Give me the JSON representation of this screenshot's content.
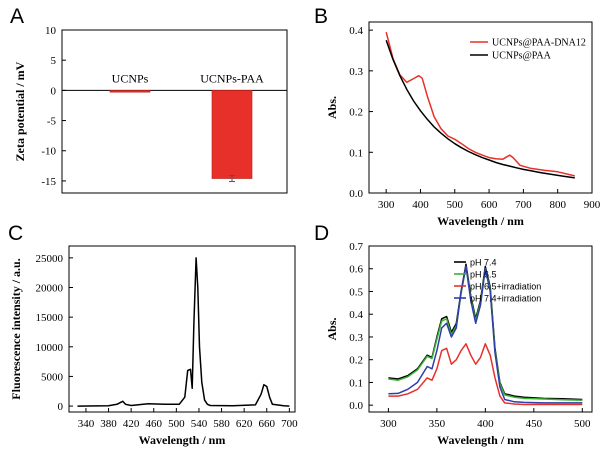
{
  "chart_data": [
    {
      "panel": "A",
      "type": "bar",
      "ylabel": "Zeta potential / mV",
      "ylim": [
        -17,
        10
      ],
      "yticks": [
        10,
        5,
        0,
        -5,
        -10,
        -15
      ],
      "categories": [
        "UCNPs",
        "UCNPs-PAA"
      ],
      "values": [
        -0.3,
        -14.6
      ],
      "errors": [
        0,
        0.5
      ],
      "color": "#e8302a"
    },
    {
      "panel": "B",
      "type": "line",
      "xlabel": "Wavelength / nm",
      "ylabel": "Abs.",
      "xlim": [
        250,
        900
      ],
      "ylim": [
        0,
        0.42
      ],
      "xticks": [
        300,
        400,
        500,
        600,
        700,
        800,
        900
      ],
      "yticks": [
        0.0,
        0.1,
        0.2,
        0.3,
        0.4
      ],
      "legend": "top-right",
      "series": [
        {
          "name": "UCNPs@PAA-DNA12",
          "color": "#e8302a",
          "x": [
            300,
            320,
            340,
            360,
            380,
            395,
            405,
            420,
            440,
            460,
            480,
            500,
            520,
            540,
            560,
            580,
            600,
            620,
            640,
            650,
            660,
            670,
            690,
            720,
            760,
            800,
            850
          ],
          "y": [
            0.395,
            0.33,
            0.29,
            0.272,
            0.281,
            0.288,
            0.282,
            0.238,
            0.187,
            0.158,
            0.14,
            0.132,
            0.121,
            0.109,
            0.1,
            0.093,
            0.087,
            0.084,
            0.083,
            0.088,
            0.093,
            0.087,
            0.068,
            0.061,
            0.056,
            0.052,
            0.042
          ]
        },
        {
          "name": "UCNPs@PAA",
          "color": "#000000",
          "x": [
            300,
            320,
            340,
            360,
            380,
            400,
            420,
            440,
            460,
            480,
            500,
            520,
            540,
            560,
            580,
            600,
            620,
            640,
            660,
            680,
            700,
            720,
            750,
            780,
            810,
            850
          ],
          "y": [
            0.375,
            0.328,
            0.288,
            0.255,
            0.226,
            0.202,
            0.181,
            0.162,
            0.147,
            0.133,
            0.121,
            0.111,
            0.102,
            0.094,
            0.087,
            0.081,
            0.075,
            0.07,
            0.066,
            0.062,
            0.058,
            0.055,
            0.05,
            0.046,
            0.042,
            0.037
          ]
        }
      ]
    },
    {
      "panel": "C",
      "type": "line",
      "xlabel": "Wavelength / nm",
      "ylabel": "Fluorescence intensity / a.u.",
      "xlim": [
        310,
        710
      ],
      "ylim": [
        -1000,
        27000
      ],
      "xticks": [
        340,
        380,
        420,
        460,
        500,
        540,
        580,
        620,
        660,
        700
      ],
      "yticks": [
        0,
        5000,
        10000,
        15000,
        20000,
        25000
      ],
      "series": [
        {
          "name": "",
          "color": "#000000",
          "x": [
            325,
            380,
            395,
            405,
            410,
            420,
            450,
            480,
            505,
            515,
            520,
            525,
            528,
            531,
            535,
            538,
            541,
            545,
            550,
            555,
            560,
            600,
            640,
            650,
            655,
            660,
            665,
            670,
            690,
            700
          ],
          "y": [
            0,
            50,
            300,
            800,
            300,
            100,
            400,
            300,
            300,
            1500,
            6000,
            6200,
            3000,
            14000,
            25000,
            20000,
            10000,
            4000,
            1000,
            300,
            100,
            50,
            200,
            2000,
            3600,
            3300,
            1500,
            300,
            50,
            0
          ]
        }
      ]
    },
    {
      "panel": "D",
      "type": "line",
      "xlabel": "Wavelength / nm",
      "ylabel": "Abs.",
      "xlim": [
        280,
        510
      ],
      "ylim": [
        -0.03,
        0.7
      ],
      "xticks": [
        300,
        350,
        400,
        450,
        500
      ],
      "yticks": [
        0.0,
        0.1,
        0.2,
        0.3,
        0.4,
        0.5,
        0.6,
        0.7
      ],
      "legend": "top-right",
      "series": [
        {
          "name": "pH 7.4",
          "color": "#000000",
          "x": [
            300,
            310,
            320,
            330,
            340,
            345,
            350,
            355,
            360,
            365,
            370,
            375,
            380,
            385,
            390,
            395,
            400,
            405,
            410,
            415,
            420,
            430,
            440,
            460,
            480,
            500
          ],
          "y": [
            0.12,
            0.115,
            0.13,
            0.16,
            0.22,
            0.21,
            0.3,
            0.38,
            0.39,
            0.32,
            0.36,
            0.5,
            0.62,
            0.48,
            0.38,
            0.46,
            0.61,
            0.52,
            0.25,
            0.1,
            0.05,
            0.04,
            0.035,
            0.03,
            0.028,
            0.025
          ]
        },
        {
          "name": "pH 6.5",
          "color": "#3cb034",
          "x": [
            300,
            310,
            320,
            330,
            340,
            345,
            350,
            355,
            360,
            365,
            370,
            375,
            380,
            385,
            390,
            395,
            400,
            405,
            410,
            415,
            420,
            430,
            440,
            460,
            480,
            500
          ],
          "y": [
            0.115,
            0.11,
            0.125,
            0.155,
            0.215,
            0.205,
            0.29,
            0.37,
            0.38,
            0.31,
            0.35,
            0.49,
            0.61,
            0.47,
            0.37,
            0.45,
            0.6,
            0.51,
            0.24,
            0.095,
            0.045,
            0.035,
            0.03,
            0.027,
            0.024,
            0.022
          ]
        },
        {
          "name": "pH 6.5+irradiation",
          "color": "#e8302a",
          "x": [
            300,
            310,
            320,
            330,
            340,
            345,
            350,
            355,
            360,
            365,
            370,
            375,
            380,
            385,
            390,
            395,
            400,
            405,
            410,
            415,
            420,
            430,
            440,
            460,
            480,
            500
          ],
          "y": [
            0.04,
            0.04,
            0.05,
            0.07,
            0.12,
            0.11,
            0.16,
            0.24,
            0.25,
            0.18,
            0.2,
            0.24,
            0.27,
            0.22,
            0.18,
            0.21,
            0.27,
            0.22,
            0.12,
            0.04,
            0.01,
            0.005,
            0.003,
            0.003,
            0.003,
            0.003
          ]
        },
        {
          "name": "pH 7.4+irradiation",
          "color": "#2f3ea8",
          "x": [
            300,
            310,
            320,
            330,
            340,
            345,
            350,
            355,
            360,
            365,
            370,
            375,
            380,
            385,
            390,
            395,
            400,
            405,
            410,
            415,
            420,
            430,
            440,
            460,
            480,
            500
          ],
          "y": [
            0.05,
            0.052,
            0.07,
            0.1,
            0.17,
            0.16,
            0.24,
            0.34,
            0.36,
            0.3,
            0.34,
            0.5,
            0.61,
            0.46,
            0.36,
            0.44,
            0.6,
            0.5,
            0.23,
            0.08,
            0.025,
            0.015,
            0.012,
            0.01,
            0.01,
            0.01
          ]
        }
      ]
    }
  ]
}
